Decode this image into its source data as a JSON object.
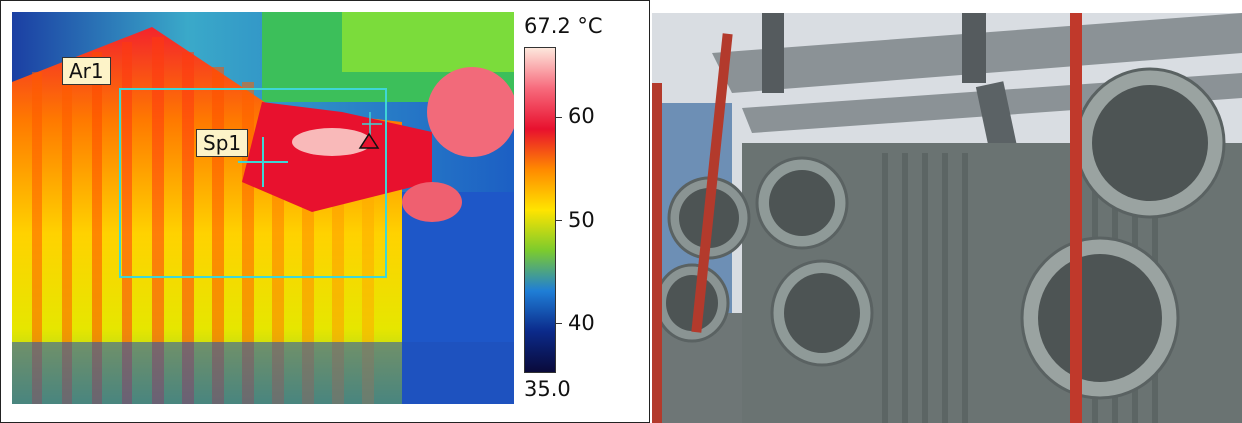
{
  "thermal": {
    "area_label": "Ar1",
    "spot_label": "Sp1",
    "scale": {
      "max_label": "67.2 °C",
      "min_label": "35.0",
      "ticks": [
        "60",
        "50",
        "40"
      ]
    },
    "palette": [
      "#fde7dc",
      "#f76a7c",
      "#e8112e",
      "#ff8a00",
      "#ffe400",
      "#7ccb2d",
      "#1f7ed6",
      "#0b2a8a",
      "#0a0a3a"
    ],
    "hotspot_color": "#e8112e",
    "roi_color": "#3fd6d6"
  },
  "photo": {
    "subject": "transformer-with-cooling-fans"
  }
}
